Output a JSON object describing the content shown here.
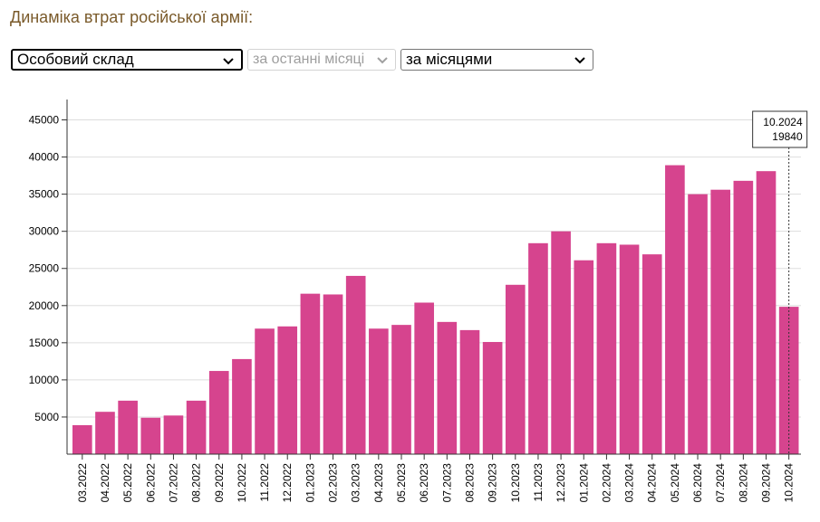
{
  "title": "Динаміка втрат російської армії:",
  "controls": {
    "category_select": "Особовий склад",
    "period_select": "за останні місяці",
    "grouping_select": "за місяцями"
  },
  "colors": {
    "bar": "#d6448e",
    "grid": "#dddddd",
    "axis": "#333333"
  },
  "tooltip": {
    "label": "10.2024",
    "value": "19840"
  },
  "chart_data": {
    "type": "bar",
    "categories": [
      "03.2022",
      "04.2022",
      "05.2022",
      "06.2022",
      "07.2022",
      "08.2022",
      "09.2022",
      "10.2022",
      "11.2022",
      "12.2022",
      "01.2023",
      "02.2023",
      "03.2023",
      "04.2023",
      "05.2023",
      "06.2023",
      "07.2023",
      "08.2023",
      "09.2023",
      "10.2023",
      "11.2023",
      "12.2023",
      "01.2024",
      "02.2024",
      "03.2024",
      "04.2024",
      "05.2024",
      "06.2024",
      "07.2024",
      "08.2024",
      "09.2024",
      "10.2024"
    ],
    "values": [
      3900,
      5700,
      7200,
      4900,
      5200,
      7200,
      11200,
      12800,
      16900,
      17200,
      21600,
      21500,
      24000,
      16900,
      17400,
      20400,
      17800,
      16700,
      15100,
      22800,
      28400,
      30000,
      26100,
      28400,
      28200,
      26900,
      38900,
      35000,
      35600,
      36800,
      38100,
      19840
    ],
    "yticks": [
      5000,
      10000,
      15000,
      20000,
      25000,
      30000,
      35000,
      40000,
      45000
    ],
    "ylim": [
      0,
      47500
    ],
    "grid": true
  }
}
